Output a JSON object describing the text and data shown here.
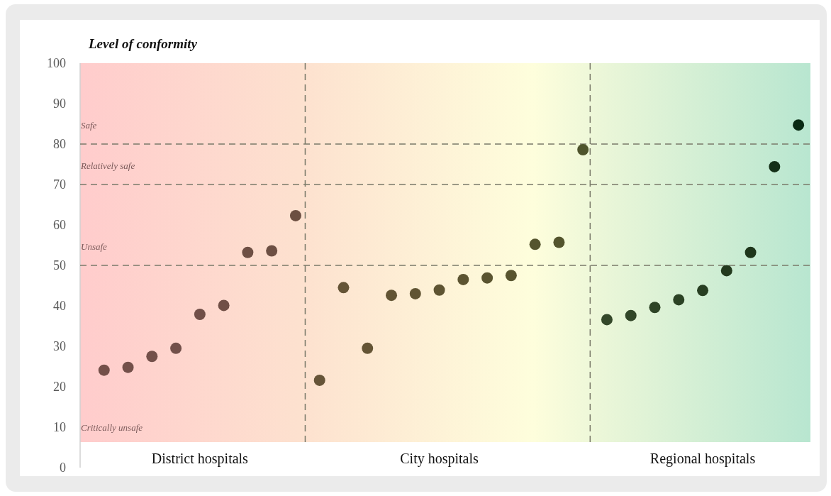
{
  "chart_data": {
    "type": "scatter",
    "title": "Level of conformity",
    "categories": [
      null,
      null,
      null,
      null,
      "District hospitals",
      null,
      null,
      null,
      null,
      null,
      null,
      null,
      null,
      null,
      "City hospitals",
      null,
      null,
      null,
      null,
      null,
      null,
      null,
      null,
      null,
      null,
      "Regional hospitals",
      null,
      null,
      null,
      null
    ],
    "values": [
      24.1,
      24.8,
      27.5,
      29.5,
      37.9,
      40.1,
      53.2,
      53.6,
      62.3,
      21.6,
      44.5,
      29.5,
      42.6,
      43.0,
      43.9,
      46.5,
      46.9,
      47.5,
      55.2,
      55.7,
      78.6,
      36.6,
      37.6,
      39.6,
      41.5,
      43.8,
      48.7,
      53.2,
      74.4,
      84.7
    ],
    "colors": [
      "#74504a",
      "#73504a",
      "#73504a",
      "#72504a",
      "#714f48",
      "#704f46",
      "#6e4f44",
      "#6d4f43",
      "#6c4f42",
      "#665438",
      "#655436",
      "#645435",
      "#625434",
      "#605433",
      "#5e5432",
      "#5c5431",
      "#5a5430",
      "#58542f",
      "#55542e",
      "#53542d",
      "#4e542c",
      "#34482a",
      "#314628",
      "#2e4426",
      "#2b4224",
      "#283f22",
      "#233a1e",
      "#1e361b",
      "#143018",
      "#0a2a14"
    ],
    "marker": "circle",
    "ylim": [
      0,
      100
    ],
    "yticks": [
      0,
      10,
      20,
      30,
      40,
      50,
      60,
      70,
      80,
      90,
      100
    ],
    "ref_lines": [
      {
        "axis": "y",
        "value": 80,
        "label": "Safe",
        "line_style": "dashed"
      },
      {
        "axis": "y",
        "value": 70,
        "label": "Relatively safe",
        "line_style": "dashed"
      },
      {
        "axis": "y",
        "value": 50,
        "label": "Unsafe",
        "line_style": "dashed"
      }
    ],
    "annotations": [
      "Critically unsafe"
    ]
  }
}
